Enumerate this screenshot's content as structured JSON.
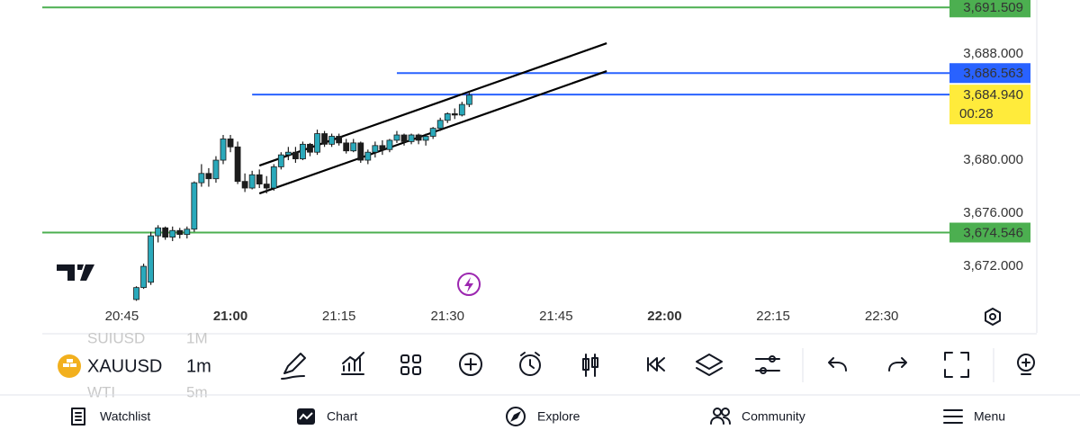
{
  "chart_data": {
    "type": "candlestick",
    "x": [
      "20:47",
      "20:48",
      "20:49",
      "20:50",
      "20:51",
      "20:52",
      "20:53",
      "20:54",
      "20:55",
      "20:56",
      "20:57",
      "20:58",
      "20:59",
      "21:00",
      "21:01",
      "21:02",
      "21:03",
      "21:04",
      "21:05",
      "21:06",
      "21:07",
      "21:08",
      "21:09",
      "21:10",
      "21:11",
      "21:12",
      "21:13",
      "21:14",
      "21:15",
      "21:16",
      "21:17",
      "21:18",
      "21:19",
      "21:20",
      "21:21",
      "21:22",
      "21:23",
      "21:24",
      "21:25",
      "21:26",
      "21:27",
      "21:28",
      "21:29",
      "21:30",
      "21:31",
      "21:32",
      "21:33"
    ],
    "open": [
      3669.5,
      3670.4,
      3670.8,
      3674.3,
      3674.9,
      3674.2,
      3674.7,
      3674.4,
      3674.8,
      3678.3,
      3679.0,
      3678.6,
      3680.0,
      3681.6,
      3681.0,
      3678.4,
      3677.9,
      3678.9,
      3678.2,
      3677.9,
      3679.5,
      3680.4,
      3680.6,
      3680.1,
      3681.2,
      3680.6,
      3682.0,
      3681.2,
      3681.8,
      3681.3,
      3680.7,
      3681.3,
      3680.0,
      3680.6,
      3681.1,
      3680.8,
      3681.5,
      3681.9,
      3681.4,
      3681.9,
      3681.5,
      3681.8,
      3682.4,
      3683.0,
      3683.5,
      3683.4,
      3684.2
    ],
    "high": [
      3670.5,
      3672.2,
      3674.6,
      3675.1,
      3675.0,
      3675.0,
      3674.9,
      3675.0,
      3678.4,
      3679.7,
      3679.4,
      3680.3,
      3681.9,
      3681.9,
      3681.4,
      3679.0,
      3679.2,
      3679.3,
      3678.8,
      3679.7,
      3680.6,
      3681.0,
      3681.0,
      3681.4,
      3681.3,
      3682.3,
      3682.2,
      3682.0,
      3682.0,
      3681.6,
      3681.6,
      3681.4,
      3680.8,
      3681.4,
      3681.5,
      3681.6,
      3682.2,
      3682.0,
      3682.0,
      3682.0,
      3682.0,
      3682.5,
      3683.2,
      3683.6,
      3683.9,
      3684.4,
      3685.2
    ],
    "low": [
      3669.4,
      3670.3,
      3670.6,
      3673.8,
      3674.0,
      3673.9,
      3674.1,
      3674.1,
      3674.6,
      3678.0,
      3678.0,
      3678.3,
      3679.7,
      3680.6,
      3678.2,
      3677.6,
      3677.8,
      3677.9,
      3677.5,
      3677.7,
      3679.3,
      3680.0,
      3679.8,
      3680.0,
      3680.3,
      3680.4,
      3681.0,
      3681.0,
      3681.1,
      3680.5,
      3680.6,
      3679.8,
      3679.7,
      3680.2,
      3680.4,
      3680.6,
      3681.3,
      3681.1,
      3681.2,
      3681.2,
      3681.1,
      3681.6,
      3682.2,
      3682.8,
      3683.1,
      3683.3,
      3684.0
    ],
    "close": [
      3670.4,
      3672.0,
      3674.3,
      3674.9,
      3674.2,
      3674.7,
      3674.4,
      3674.8,
      3678.3,
      3679.0,
      3678.6,
      3680.0,
      3681.6,
      3681.0,
      3678.4,
      3677.9,
      3678.9,
      3678.2,
      3677.9,
      3679.5,
      3680.4,
      3680.6,
      3680.1,
      3681.2,
      3680.6,
      3682.0,
      3681.2,
      3681.8,
      3681.3,
      3680.7,
      3681.3,
      3680.0,
      3680.6,
      3681.1,
      3680.8,
      3681.5,
      3681.9,
      3681.4,
      3681.9,
      3681.5,
      3681.8,
      3682.4,
      3683.0,
      3683.5,
      3683.4,
      3684.2,
      3684.9
    ],
    "up_color": "#2aa9bb",
    "down_color": "#1c1c1c",
    "xlim": [
      "20:34",
      "22:39"
    ],
    "xticks": [
      "20:45",
      "21:00",
      "21:15",
      "21:30",
      "21:45",
      "22:00",
      "22:15",
      "22:30"
    ],
    "ylim": [
      3669.36,
      3692.07
    ],
    "yticks": [
      {
        "value": 3672,
        "label": "3,672.000"
      },
      {
        "value": 3676,
        "label": "3,676.000"
      },
      {
        "value": 3680,
        "label": "3,680.000"
      },
      {
        "value": 3688,
        "label": "3,688.000"
      }
    ],
    "hlines": [
      {
        "value": 3691.509,
        "label": "3,691.509",
        "color": "#4caf50"
      },
      {
        "value": 3674.546,
        "label": "3,674.546",
        "color": "#4caf50"
      },
      {
        "value": 3686.563,
        "label": "3,686.563",
        "color": "#2962ff",
        "start": "21:23"
      },
      {
        "value": 3684.94,
        "label": "3,684.940",
        "color": "#2962ff",
        "start": "21:03",
        "countdown": "00:28",
        "label_color": "#ffeb3b"
      }
    ],
    "trendlines": [
      {
        "x": [
          "21:04",
          "21:52"
        ],
        "y": [
          3677.49,
          3686.71
        ]
      },
      {
        "x": [
          "21:04",
          "21:52"
        ],
        "y": [
          3679.59,
          3688.81
        ]
      }
    ]
  },
  "toolbar": {
    "symbol": "XAUUSD",
    "interval": "1m",
    "prev_symbol": "SUIUSD",
    "prev_interval": "1M",
    "next_symbol": "WTI",
    "next_interval": "5m"
  },
  "nav": [
    "Watchlist",
    "Chart",
    "Explore",
    "Community",
    "Menu"
  ]
}
